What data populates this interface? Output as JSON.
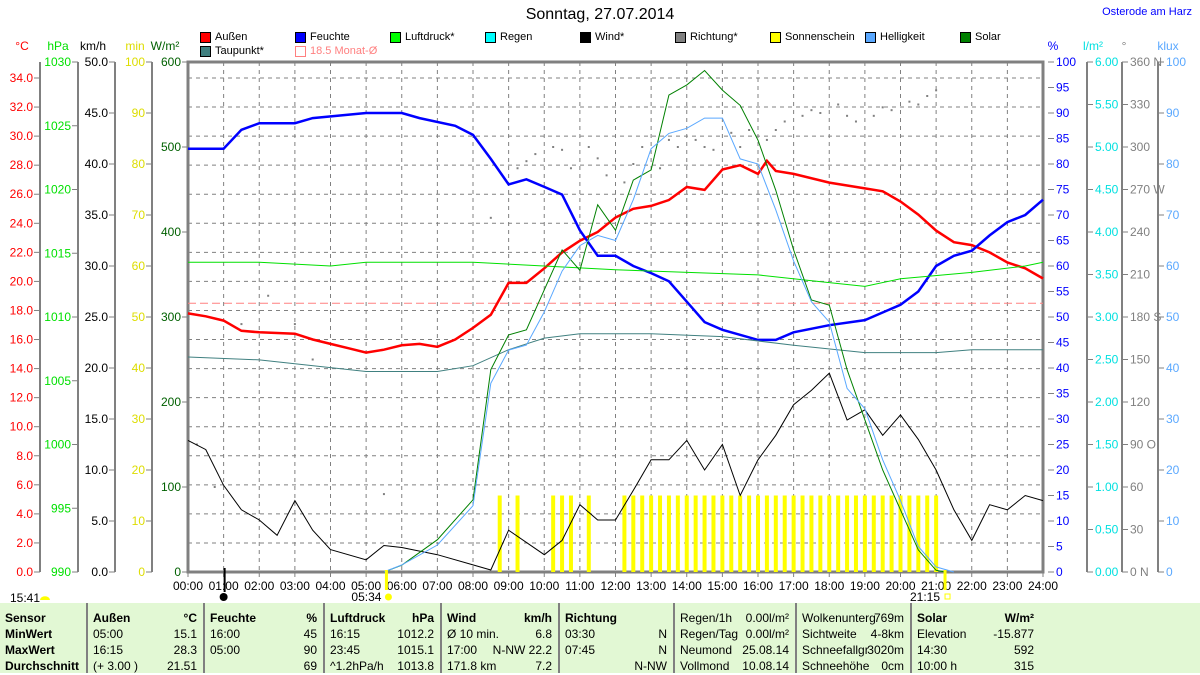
{
  "header": {
    "title": "Sonntag, 27.07.2014",
    "location": "Osterode am Harz"
  },
  "legend": [
    {
      "label": "Außen",
      "color": "#ff0000"
    },
    {
      "label": "Feuchte",
      "color": "#0000ff"
    },
    {
      "label": "Luftdruck*",
      "color": "#00ff00"
    },
    {
      "label": "Regen",
      "color": "#00ffff"
    },
    {
      "label": "Wind*",
      "color": "#000000"
    },
    {
      "label": "Richtung*",
      "color": "#808080"
    },
    {
      "label": "Sonnenschein",
      "color": "#ffff00"
    },
    {
      "label": "Helligkeit",
      "color": "#5aa8ff"
    },
    {
      "label": "Solar",
      "color": "#008000"
    },
    {
      "label": "Taupunkt*",
      "color": "#408080"
    },
    {
      "label": "18.5 Monat-Ø",
      "color": "#ff8080",
      "outline": true
    }
  ],
  "chart_data": {
    "type": "line",
    "title": "Sonntag, 27.07.2014",
    "xlabel": "",
    "x_range": [
      0,
      24
    ],
    "x_ticks": [
      "00:00",
      "01:00",
      "02:00",
      "03:00",
      "04:00",
      "05:00",
      "06:00",
      "07:00",
      "08:00",
      "09:00",
      "10:00",
      "11:00",
      "12:00",
      "13:00",
      "14:00",
      "15:00",
      "16:00",
      "17:00",
      "18:00",
      "19:00",
      "20:00",
      "21:00",
      "22:00",
      "23:00",
      "24:00"
    ],
    "grid": true,
    "axes": {
      "temp": {
        "unit": "°C",
        "range": [
          0,
          34
        ],
        "ticks": [
          "0.0",
          "2.0",
          "4.0",
          "6.0",
          "8.0",
          "10.0",
          "12.0",
          "14.0",
          "16.0",
          "18.0",
          "20.0",
          "22.0",
          "24.0",
          "26.0",
          "28.0",
          "30.0",
          "32.0",
          "34.0"
        ],
        "color": "#ff0000"
      },
      "pressure": {
        "unit": "hPa",
        "range": [
          990,
          1030
        ],
        "ticks": [
          "990",
          "995",
          "1000",
          "1005",
          "1010",
          "1015",
          "1020",
          "1025",
          "1030"
        ],
        "color": "#00ff00"
      },
      "wind": {
        "unit": "km/h",
        "range": [
          0,
          50
        ],
        "ticks": [
          "0.0",
          "5.0",
          "10.0",
          "15.0",
          "20.0",
          "25.0",
          "30.0",
          "35.0",
          "40.0",
          "45.0",
          "50.0"
        ],
        "color": "#000000"
      },
      "sunshine": {
        "unit": "min",
        "range": [
          0,
          100
        ],
        "ticks": [
          "0",
          "10",
          "20",
          "30",
          "40",
          "50",
          "60",
          "70",
          "80",
          "90",
          "100"
        ],
        "color": "#ffff00"
      },
      "solar": {
        "unit": "W/m²",
        "range": [
          0,
          600
        ],
        "ticks": [
          "0",
          "100",
          "200",
          "300",
          "400",
          "500",
          "600"
        ],
        "color": "#008000"
      },
      "humidity": {
        "unit": "%",
        "range": [
          0,
          100
        ],
        "ticks": [
          "0",
          "5",
          "10",
          "15",
          "20",
          "25",
          "30",
          "35",
          "40",
          "45",
          "50",
          "55",
          "60",
          "65",
          "70",
          "75",
          "80",
          "85",
          "90",
          "95",
          "100"
        ],
        "color": "#0000ff"
      },
      "rain": {
        "unit": "l/m²",
        "range": [
          0,
          6
        ],
        "ticks": [
          "0.00",
          "0.50",
          "1.00",
          "1.50",
          "2.00",
          "2.50",
          "3.00",
          "3.50",
          "4.00",
          "4.50",
          "5.00",
          "5.50",
          "6.00"
        ],
        "color": "#00ffff"
      },
      "direction": {
        "unit": "°",
        "range": [
          0,
          360
        ],
        "ticks": [
          "0 N",
          "30",
          "60",
          "90 O",
          "120",
          "150",
          "180 S",
          "210",
          "240",
          "270 W",
          "300",
          "330",
          "360 N"
        ],
        "color": "#808080"
      },
      "brightness": {
        "unit": "klux",
        "range": [
          0,
          100
        ],
        "ticks": [
          "0",
          "10",
          "20",
          "30",
          "40",
          "50",
          "60",
          "70",
          "80",
          "90",
          "100"
        ],
        "color": "#5aa8ff"
      }
    },
    "series": [
      {
        "name": "Außen",
        "axis": "temp",
        "color": "#ff0000",
        "width": 2.5,
        "x": [
          0,
          0.5,
          1,
          1.5,
          2,
          3,
          3.5,
          4,
          4.5,
          5,
          5.5,
          6,
          6.5,
          7,
          7.5,
          8,
          8.5,
          9,
          9.5,
          10,
          10.5,
          11,
          11.5,
          12,
          12.5,
          13,
          13.5,
          14,
          14.5,
          15,
          15.5,
          16,
          16.25,
          16.5,
          17,
          18,
          18.5,
          19,
          19.5,
          20,
          20.5,
          21,
          21.5,
          22,
          22.5,
          23,
          23.5,
          24
        ],
        "y": [
          17.8,
          17.6,
          17.3,
          16.6,
          16.5,
          16.4,
          16.0,
          15.7,
          15.4,
          15.1,
          15.3,
          15.6,
          15.7,
          15.5,
          16.0,
          16.8,
          17.7,
          19.9,
          19.9,
          20.9,
          22.0,
          22.8,
          23.4,
          24.4,
          25.0,
          25.2,
          25.6,
          26.5,
          26.3,
          27.7,
          28.0,
          27.4,
          28.3,
          27.6,
          27.4,
          26.8,
          26.6,
          26.4,
          26.2,
          25.5,
          24.6,
          23.5,
          22.7,
          22.5,
          22.0,
          21.3,
          20.9,
          20.2
        ]
      },
      {
        "name": "Feuchte",
        "axis": "humidity",
        "color": "#0000ff",
        "width": 2.5,
        "x": [
          0,
          1,
          1.5,
          2,
          3,
          3.5,
          5,
          6,
          6.5,
          7.5,
          8,
          8.5,
          9,
          9.5,
          10,
          10.5,
          11,
          11.5,
          12,
          12.5,
          13,
          13.5,
          14,
          14.5,
          15,
          16,
          16.5,
          17,
          18,
          19,
          20,
          20.5,
          21,
          21.5,
          22,
          22.5,
          23,
          23.5,
          24
        ],
        "y": [
          83,
          83,
          86.7,
          88,
          88,
          89,
          90,
          90,
          89,
          87.5,
          85.7,
          81,
          76,
          77,
          75.5,
          74,
          67,
          62,
          62,
          60,
          58.6,
          57,
          53,
          49,
          47.5,
          45.5,
          45.5,
          47,
          48.4,
          49.4,
          52.4,
          55,
          60,
          62,
          63,
          66,
          68.6,
          70,
          73
        ]
      },
      {
        "name": "Luftdruck*",
        "axis": "pressure",
        "color": "#00e000",
        "width": 1,
        "x": [
          0,
          2,
          4,
          5,
          8,
          12,
          16,
          18,
          19,
          20,
          22,
          23.5,
          24
        ],
        "y": [
          1014.3,
          1014.3,
          1014.0,
          1014.3,
          1014.3,
          1013.7,
          1013.3,
          1012.7,
          1012.4,
          1013.0,
          1013.5,
          1014.0,
          1014.3
        ]
      },
      {
        "name": "Taupunkt*",
        "axis": "temp",
        "color": "#408080",
        "width": 1,
        "x": [
          0,
          2,
          5,
          7,
          8,
          9,
          10,
          11,
          13,
          15,
          17,
          19,
          21,
          22,
          24
        ],
        "y": [
          14.8,
          14.6,
          13.8,
          13.8,
          14.2,
          15.3,
          16.1,
          16.4,
          16.4,
          16.2,
          15.6,
          15.1,
          15.1,
          15.3,
          15.3
        ]
      },
      {
        "name": "Wind*",
        "axis": "wind",
        "color": "#000000",
        "width": 1,
        "x": [
          0,
          0.5,
          1,
          1.5,
          2,
          2.5,
          3,
          3.5,
          4,
          5,
          5.5,
          6,
          7,
          8,
          8.5,
          9,
          10,
          10.5,
          11,
          11.5,
          12,
          12.5,
          13,
          13.5,
          14,
          14.5,
          15,
          15.5,
          16,
          16.5,
          17,
          17.5,
          18,
          18.5,
          19,
          19.5,
          20,
          20.5,
          21,
          21.5,
          22,
          22.5,
          23,
          23.5,
          24
        ],
        "y": [
          12.9,
          12.0,
          8.5,
          6.1,
          5.1,
          3.6,
          7.0,
          4.1,
          2.2,
          1.2,
          2.6,
          2.4,
          1.7,
          0.7,
          0.2,
          4.1,
          1.7,
          3.1,
          6.6,
          5.1,
          5.1,
          8.0,
          11.0,
          11.0,
          12.9,
          10.0,
          12.5,
          7.5,
          11.0,
          13.4,
          16.4,
          17.8,
          19.5,
          14.9,
          15.9,
          13.4,
          15.4,
          13.0,
          10.0,
          6.1,
          3.1,
          6.6,
          6.1,
          7.5,
          7.0
        ]
      },
      {
        "name": "Solar",
        "axis": "solar",
        "color": "#008000",
        "width": 1,
        "x": [
          5.5,
          6,
          7,
          8,
          8.5,
          9,
          9.5,
          10,
          10.5,
          11,
          11.5,
          12,
          12.5,
          13,
          13.5,
          14,
          14.5,
          15,
          15.5,
          16,
          16.5,
          17,
          17.5,
          18,
          18.5,
          19,
          19.5,
          20,
          20.5,
          21,
          21.25
        ],
        "y": [
          0,
          8,
          38,
          85,
          238,
          279,
          285,
          332,
          379,
          355,
          432,
          402,
          461,
          473,
          561,
          573,
          590,
          567,
          549,
          508,
          449,
          379,
          320,
          314,
          238,
          179,
          120,
          73,
          26,
          2,
          0
        ]
      },
      {
        "name": "Helligkeit",
        "axis": "brightness",
        "color": "#5aa8ff",
        "width": 1,
        "x": [
          5.5,
          6,
          7,
          8,
          8.5,
          9,
          9.5,
          10,
          10.5,
          11,
          11.5,
          12,
          12.5,
          13,
          13.5,
          14,
          14.5,
          15,
          15.5,
          16,
          16.5,
          17,
          17.5,
          18,
          18.5,
          19,
          19.5,
          20,
          20.5,
          21,
          21.5
        ],
        "y": [
          0,
          1.4,
          5.3,
          13,
          37,
          43.5,
          44.5,
          51,
          59,
          64,
          66,
          65,
          73,
          83,
          86,
          87,
          89,
          89,
          81,
          80,
          71,
          61,
          53,
          49,
          36,
          32,
          22,
          14,
          5,
          1,
          0
        ]
      }
    ],
    "direction_points": {
      "axis": "direction",
      "color": "#808080",
      "x": [
        0.25,
        0.75,
        1.5,
        2.25,
        3,
        3.5,
        5.5,
        8.5,
        9.25,
        9.5,
        9.75,
        10.25,
        10.5,
        10.75,
        11.25,
        11.5,
        11.75,
        12.25,
        12.5,
        12.75,
        13.25,
        13.5,
        13.75,
        14.25,
        14.5,
        14.75,
        15.25,
        15.5,
        15.75,
        16.25,
        16.5,
        16.75,
        17.25,
        17.5,
        17.75,
        18.25,
        18.5,
        18.75,
        19.25,
        19.5,
        19.75,
        20.25,
        20.5,
        20.75,
        21
      ],
      "y": [
        90,
        60,
        175,
        195,
        175,
        150,
        55,
        250,
        285,
        290,
        295,
        300,
        298,
        285,
        300,
        292,
        280,
        275,
        288,
        300,
        285,
        305,
        300,
        305,
        300,
        298,
        310,
        300,
        312,
        305,
        312,
        318,
        322,
        326,
        324,
        330,
        322,
        318,
        322,
        328,
        326,
        332,
        330,
        336,
        340
      ]
    },
    "sunshine_bars": {
      "axis": "sunshine",
      "color": "#ffff00",
      "value": 15,
      "x": [
        8.75,
        9.25,
        10.25,
        10.5,
        10.75,
        11.25,
        12.25,
        12.5,
        12.75,
        13,
        13.25,
        13.5,
        13.75,
        14,
        14.25,
        14.5,
        14.75,
        15,
        15.25,
        15.5,
        15.75,
        16,
        16.25,
        16.5,
        16.75,
        17,
        17.25,
        17.5,
        17.75,
        18,
        18.25,
        18.5,
        18.75,
        19,
        19.25,
        19.5,
        19.75,
        20,
        20.25,
        20.5,
        20.75,
        21
      ]
    },
    "monthly_mean": {
      "label": "18.5 Monat-Ø",
      "axis": "temp",
      "value": 18.5,
      "color": "#ff8080"
    },
    "markers": {
      "now": "15:41",
      "sunrise": "05:34",
      "sunset": "21:15"
    }
  },
  "footer": {
    "columns": [
      {
        "head": [
          "Sensor",
          ""
        ],
        "rows": [
          [
            "MinWert",
            ""
          ],
          [
            "MaxWert",
            ""
          ],
          [
            "Durchschnitt",
            ""
          ]
        ],
        "bold_rows": true
      },
      {
        "head": [
          "Außen",
          "°C"
        ],
        "rows": [
          [
            "05:00",
            "15.1"
          ],
          [
            "16:15",
            "28.3"
          ],
          [
            "(+ 3.00 )",
            "21.51"
          ]
        ]
      },
      {
        "head": [
          "Feuchte",
          "%"
        ],
        "rows": [
          [
            "16:00",
            "45"
          ],
          [
            "05:00",
            "90"
          ],
          [
            "",
            "69"
          ]
        ]
      },
      {
        "head": [
          "Luftdruck",
          "hPa"
        ],
        "rows": [
          [
            "16:15",
            "1012.2"
          ],
          [
            "23:45",
            "1015.1"
          ],
          [
            "^1.2hPa/h",
            "1013.8"
          ]
        ]
      },
      {
        "head": [
          "Wind",
          "km/h"
        ],
        "rows": [
          [
            "Ø 10 min.",
            "6.8"
          ],
          [
            "17:00",
            "N-NW 22.2"
          ],
          [
            "171.8 km",
            "7.2"
          ]
        ]
      },
      {
        "head": [
          "Richtung",
          ""
        ],
        "rows": [
          [
            "03:30",
            "N"
          ],
          [
            "07:45",
            "N"
          ],
          [
            "",
            "N-NW"
          ]
        ]
      },
      {
        "head": [
          "Regen/1h",
          "0.00l/m²"
        ],
        "plainhead": true,
        "rows": [
          [
            "Regen/Tag",
            "0.00l/m²"
          ],
          [
            "Neumond",
            "25.08.14"
          ],
          [
            "Vollmond",
            "10.08.14"
          ]
        ]
      },
      {
        "head": [
          "Wolkenunterg",
          "769m"
        ],
        "plainhead": true,
        "rows": [
          [
            "Sichtweite",
            "4-8km"
          ],
          [
            "Schneefallgr",
            "3020m"
          ],
          [
            "Schneehöhe",
            "0cm"
          ]
        ]
      },
      {
        "head": [
          "Solar",
          "W/m²"
        ],
        "rows": [
          [
            "Elevation",
            "-15.877"
          ],
          [
            "14:30",
            "592"
          ],
          [
            "10:00 h",
            "315"
          ]
        ]
      }
    ]
  }
}
